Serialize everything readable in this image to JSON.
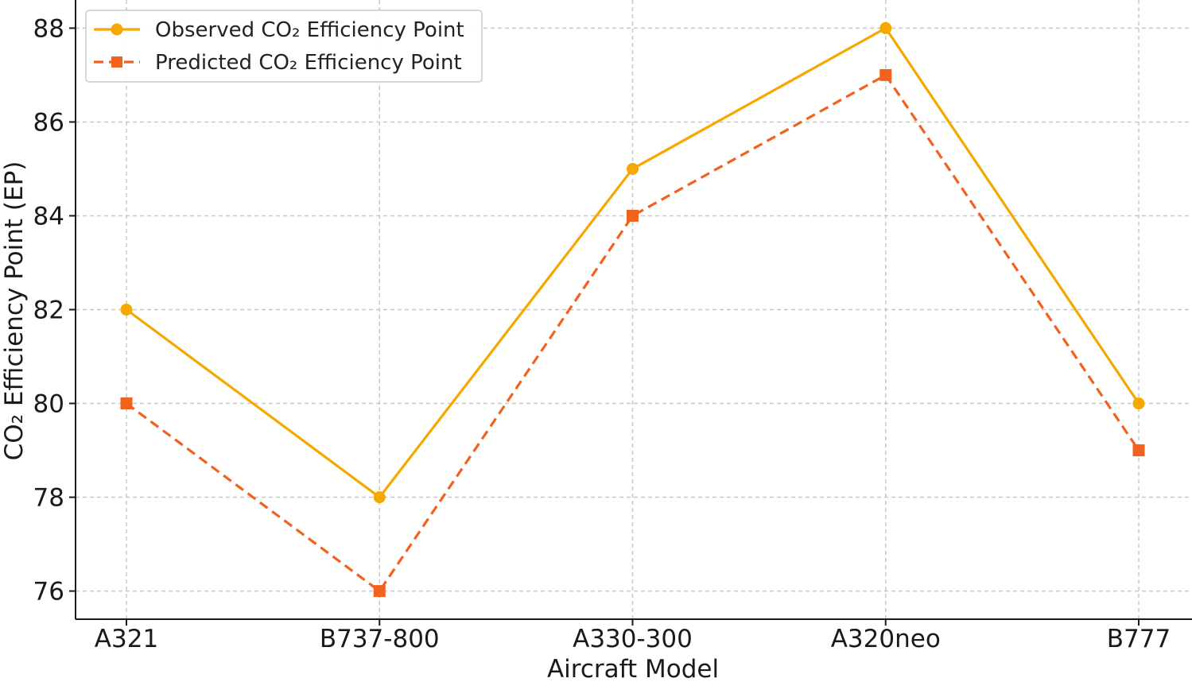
{
  "chart_data": {
    "type": "line",
    "title": "",
    "xlabel": "Aircraft Model",
    "ylabel": "CO₂ Efficiency Point (EP)",
    "categories": [
      "A321",
      "B737-800",
      "A330-300",
      "A320neo",
      "B777"
    ],
    "ylim": [
      75.4,
      88.6
    ],
    "yticks": [
      76,
      78,
      80,
      82,
      84,
      86,
      88
    ],
    "grid": true,
    "legend_position": "top-left",
    "series": [
      {
        "name": "Observed CO₂ Efficiency Point",
        "values": [
          82,
          78,
          85,
          88,
          80
        ],
        "color": "#f5a800",
        "line_style": "solid",
        "marker": "circle"
      },
      {
        "name": "Predicted CO₂ Efficiency Point",
        "values": [
          80,
          76,
          84,
          87,
          79
        ],
        "color": "#f0621e",
        "line_style": "dashed",
        "marker": "square"
      }
    ]
  }
}
